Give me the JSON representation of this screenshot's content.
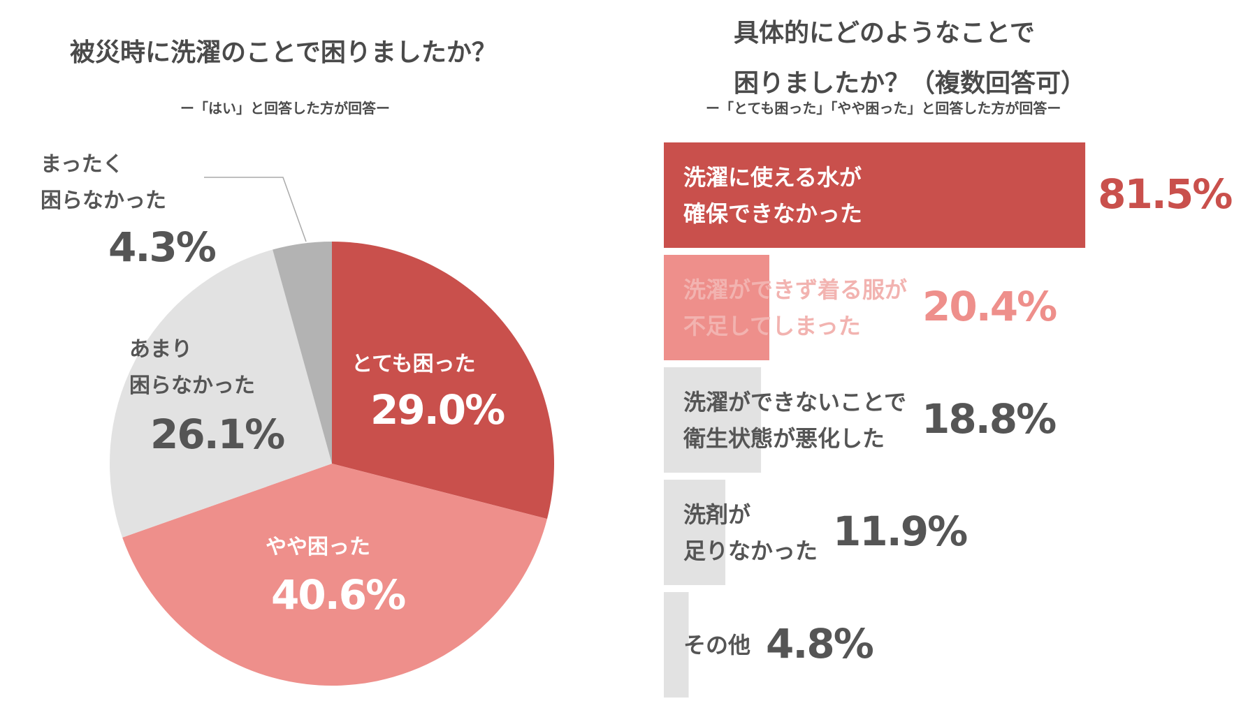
{
  "chart_data": [
    {
      "type": "pie",
      "title": "被災時に洗濯のことで困りましたか？",
      "subtitle": "ー「はい」と回答した方が回答ー",
      "slices": [
        {
          "label": "とても困った",
          "value": 29.0,
          "text": "29.0%",
          "color": "#c9504c"
        },
        {
          "label": "やや困った",
          "value": 40.6,
          "text": "40.6%",
          "color": "#ee8f8b"
        },
        {
          "label": "あまり困らなかった",
          "value": 26.1,
          "text": "26.1%",
          "color": "#e2e2e2"
        },
        {
          "label": "まったく困らなかった",
          "value": 4.3,
          "text": "4.3%",
          "color": "#b3b3b3"
        }
      ]
    },
    {
      "type": "bar",
      "title_line1": "具体的にどのようなことで",
      "title_line2": "困りましたか？（複数回答可）",
      "subtitle": "ー「とても困った」「やや困った」と回答した方が回答ー",
      "bars": [
        {
          "label1": "洗濯に使える水が",
          "label2": "確保できなかった",
          "value": 81.5,
          "text": "81.5%",
          "color": "#c9504c",
          "textColor": "#ffffff",
          "valueColor": "#c9504c"
        },
        {
          "label1": "洗濯ができず着る服が",
          "label2": "不足してしまった",
          "value": 20.4,
          "text": "20.4%",
          "color": "#ee8f8b",
          "textColor": "#f2b3b0",
          "valueColor": "#ee8f8b"
        },
        {
          "label1": "洗濯ができないことで",
          "label2": "衛生状態が悪化した",
          "value": 18.8,
          "text": "18.8%",
          "color": "#e2e2e2",
          "textColor": "#555555",
          "valueColor": "#555555"
        },
        {
          "label1": "洗剤が",
          "label2": "足りなかった",
          "value": 11.9,
          "text": "11.9%",
          "color": "#e2e2e2",
          "textColor": "#555555",
          "valueColor": "#555555"
        },
        {
          "label1": "その他",
          "label2": "",
          "value": 4.8,
          "text": "4.8%",
          "color": "#e2e2e2",
          "textColor": "#555555",
          "valueColor": "#555555"
        }
      ]
    }
  ]
}
